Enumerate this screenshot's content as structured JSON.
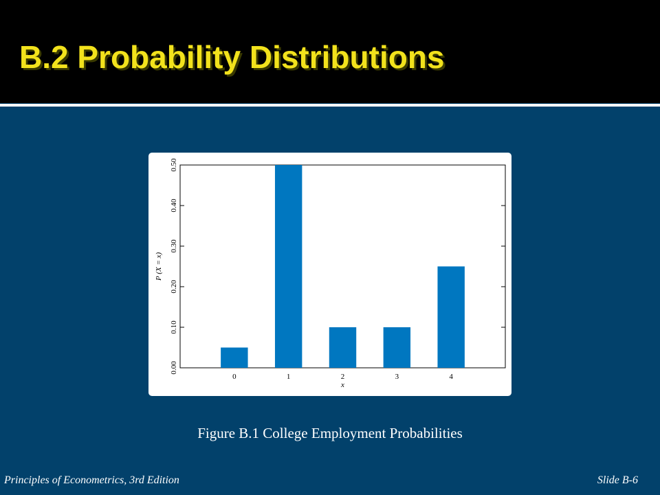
{
  "slide": {
    "title": "B.2 Probability Distributions",
    "caption": "Figure B.1 College Employment Probabilities",
    "footer_left": "Principles of Econometrics, 3rd Edition",
    "footer_right": "Slide B-6"
  },
  "chart_data": {
    "type": "bar",
    "x": [
      0,
      1,
      2,
      3,
      4
    ],
    "values": [
      0.05,
      0.5,
      0.1,
      0.1,
      0.25
    ],
    "color": "#0077c0",
    "xlim": [
      -1,
      5
    ],
    "xticks": [
      0,
      1,
      2,
      3,
      4
    ],
    "ylim": [
      0,
      0.5
    ],
    "yticks": [
      {
        "value": 0,
        "label": "0.00"
      },
      {
        "value": 0.1,
        "label": "0.10"
      },
      {
        "value": 0.2,
        "label": "0.20"
      },
      {
        "value": 0.3,
        "label": "0.30"
      },
      {
        "value": 0.4,
        "label": "0.40"
      },
      {
        "value": 0.5,
        "label": "0.50"
      }
    ],
    "x_label": "x",
    "y_label": "P (X = x)"
  }
}
